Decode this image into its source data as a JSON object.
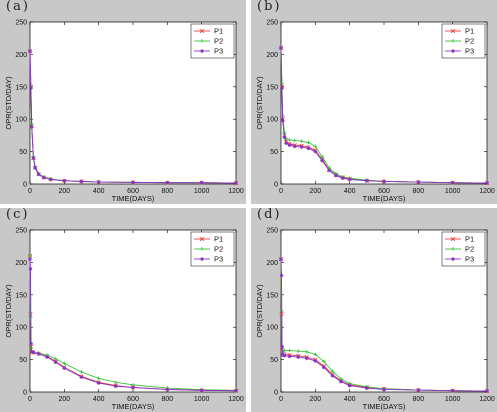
{
  "chart_data": [
    {
      "type": "line",
      "panel_label": "(a)",
      "xlabel": "TIME(DAYS)",
      "ylabel": "OPR(STD/DAY)",
      "xlim": [
        0,
        1200
      ],
      "ylim": [
        0,
        250
      ],
      "xticks": [
        "0",
        "200",
        "400",
        "600",
        "800",
        "1000",
        "1200"
      ],
      "yticks": [
        "0",
        "50",
        "100",
        "150",
        "200",
        "250"
      ],
      "legend_position": "top-right",
      "series": [
        {
          "name": "P1",
          "color": "#e8413c",
          "marker": "x",
          "x": [
            0,
            5,
            10,
            20,
            30,
            50,
            80,
            120,
            200,
            300,
            400,
            600,
            800,
            1000,
            1200
          ],
          "y": [
            205,
            150,
            90,
            40,
            25,
            15,
            10,
            7,
            5,
            4,
            3,
            2.5,
            2,
            2,
            1.5
          ]
        },
        {
          "name": "P2",
          "color": "#3ec43e",
          "marker": "+",
          "x": [
            0,
            5,
            10,
            20,
            30,
            50,
            80,
            120,
            200,
            300,
            400,
            600,
            800,
            1000,
            1200
          ],
          "y": [
            205,
            150,
            92,
            42,
            27,
            16,
            11,
            8,
            5,
            4,
            3,
            2.5,
            2,
            2,
            1.5
          ]
        },
        {
          "name": "P3",
          "color": "#8a2fc9",
          "marker": "*",
          "x": [
            0,
            5,
            10,
            20,
            30,
            50,
            80,
            120,
            200,
            300,
            400,
            600,
            800,
            1000,
            1200
          ],
          "y": [
            205,
            148,
            88,
            40,
            25,
            15,
            10,
            7,
            5,
            4,
            3,
            2.5,
            2,
            2,
            1.5
          ]
        }
      ]
    },
    {
      "type": "line",
      "panel_label": "(b)",
      "xlabel": "TIME(DAYS)",
      "ylabel": "OPR(STD/DAY)",
      "xlim": [
        0,
        1200
      ],
      "ylim": [
        0,
        250
      ],
      "xticks": [
        "0",
        "200",
        "400",
        "600",
        "800",
        "1000",
        "1200"
      ],
      "yticks": [
        "0",
        "50",
        "100",
        "150",
        "200",
        "250"
      ],
      "legend_position": "top-right",
      "series": [
        {
          "name": "P1",
          "color": "#e8413c",
          "marker": "x",
          "x": [
            0,
            5,
            10,
            20,
            30,
            50,
            80,
            120,
            160,
            200,
            240,
            280,
            320,
            360,
            400,
            500,
            600,
            800,
            1000,
            1200
          ],
          "y": [
            210,
            150,
            100,
            75,
            65,
            62,
            60,
            59,
            57,
            52,
            38,
            22,
            14,
            10,
            8,
            5,
            4,
            3,
            2,
            1.5
          ]
        },
        {
          "name": "P2",
          "color": "#3ec43e",
          "marker": "+",
          "x": [
            0,
            5,
            10,
            20,
            30,
            50,
            80,
            120,
            160,
            200,
            240,
            280,
            320,
            360,
            400,
            500,
            600,
            800,
            1000,
            1200
          ],
          "y": [
            210,
            155,
            105,
            80,
            70,
            68,
            67,
            66,
            64,
            58,
            42,
            25,
            16,
            11,
            9,
            6,
            4,
            3,
            2,
            1.5
          ]
        },
        {
          "name": "P3",
          "color": "#8a2fc9",
          "marker": "*",
          "x": [
            0,
            5,
            10,
            20,
            30,
            50,
            80,
            120,
            160,
            200,
            240,
            280,
            320,
            360,
            400,
            500,
            600,
            800,
            1000,
            1200
          ],
          "y": [
            210,
            148,
            98,
            72,
            63,
            60,
            58,
            57,
            55,
            50,
            36,
            21,
            13,
            9,
            7,
            5,
            4,
            3,
            2,
            1.5
          ]
        }
      ]
    },
    {
      "type": "line",
      "panel_label": "(c)",
      "xlabel": "TIME(DAYS)",
      "ylabel": "OPR(STD/DAY)",
      "xlim": [
        0,
        1200
      ],
      "ylim": [
        0,
        250
      ],
      "xticks": [
        "0",
        "200",
        "400",
        "600",
        "800",
        "1000",
        "1200"
      ],
      "yticks": [
        "0",
        "50",
        "100",
        "150",
        "200",
        "250"
      ],
      "legend_position": "top-right",
      "series": [
        {
          "name": "P1",
          "color": "#e8413c",
          "marker": "x",
          "x": [
            0,
            3,
            6,
            10,
            20,
            50,
            100,
            150,
            200,
            300,
            400,
            500,
            600,
            800,
            1000,
            1200
          ],
          "y": [
            210,
            120,
            70,
            62,
            61,
            59,
            55,
            47,
            38,
            24,
            15,
            10,
            7,
            4,
            2.5,
            2
          ]
        },
        {
          "name": "P2",
          "color": "#3ec43e",
          "marker": "+",
          "x": [
            0,
            3,
            6,
            10,
            20,
            50,
            100,
            150,
            200,
            300,
            400,
            500,
            600,
            800,
            1000,
            1200
          ],
          "y": [
            210,
            115,
            68,
            62,
            61,
            60,
            57,
            51,
            44,
            31,
            21,
            15,
            11,
            6,
            3.5,
            2.5
          ]
        },
        {
          "name": "P3",
          "color": "#8a2fc9",
          "marker": "*",
          "x": [
            0,
            3,
            6,
            10,
            20,
            50,
            100,
            150,
            200,
            300,
            400,
            500,
            600,
            800,
            1000,
            1200
          ],
          "y": [
            205,
            190,
            75,
            62,
            61,
            59,
            54,
            46,
            37,
            23,
            14,
            9,
            7,
            4,
            2.5,
            2
          ]
        }
      ]
    },
    {
      "type": "line",
      "panel_label": "(d)",
      "xlabel": "TIME(DAYS)",
      "ylabel": "OPR(STD/DAY)",
      "xlim": [
        0,
        1200
      ],
      "ylim": [
        0,
        250
      ],
      "xticks": [
        "0",
        "200",
        "400",
        "600",
        "800",
        "1000",
        "1200"
      ],
      "yticks": [
        "0",
        "50",
        "100",
        "150",
        "200",
        "250"
      ],
      "legend_position": "top-right",
      "series": [
        {
          "name": "P1",
          "color": "#e8413c",
          "marker": "x",
          "x": [
            0,
            3,
            6,
            10,
            20,
            50,
            100,
            150,
            200,
            250,
            300,
            350,
            400,
            500,
            600,
            800,
            1000,
            1200
          ],
          "y": [
            205,
            120,
            65,
            59,
            58,
            57,
            56,
            54,
            50,
            40,
            27,
            17,
            11,
            7,
            5,
            3,
            2,
            1.5
          ]
        },
        {
          "name": "P2",
          "color": "#3ec43e",
          "marker": "+",
          "x": [
            0,
            3,
            6,
            10,
            20,
            50,
            100,
            150,
            200,
            250,
            300,
            350,
            400,
            500,
            600,
            800,
            1000,
            1200
          ],
          "y": [
            205,
            125,
            70,
            64,
            64,
            64,
            63,
            62,
            58,
            47,
            32,
            20,
            13,
            8,
            5,
            3,
            2,
            1.5
          ]
        },
        {
          "name": "P3",
          "color": "#8a2fc9",
          "marker": "*",
          "x": [
            0,
            3,
            6,
            10,
            20,
            50,
            100,
            150,
            200,
            250,
            300,
            350,
            400,
            500,
            600,
            800,
            1000,
            1200
          ],
          "y": [
            205,
            180,
            70,
            57,
            56,
            55,
            54,
            52,
            48,
            38,
            25,
            16,
            10,
            6,
            4,
            3,
            2,
            1.5
          ]
        }
      ]
    }
  ]
}
